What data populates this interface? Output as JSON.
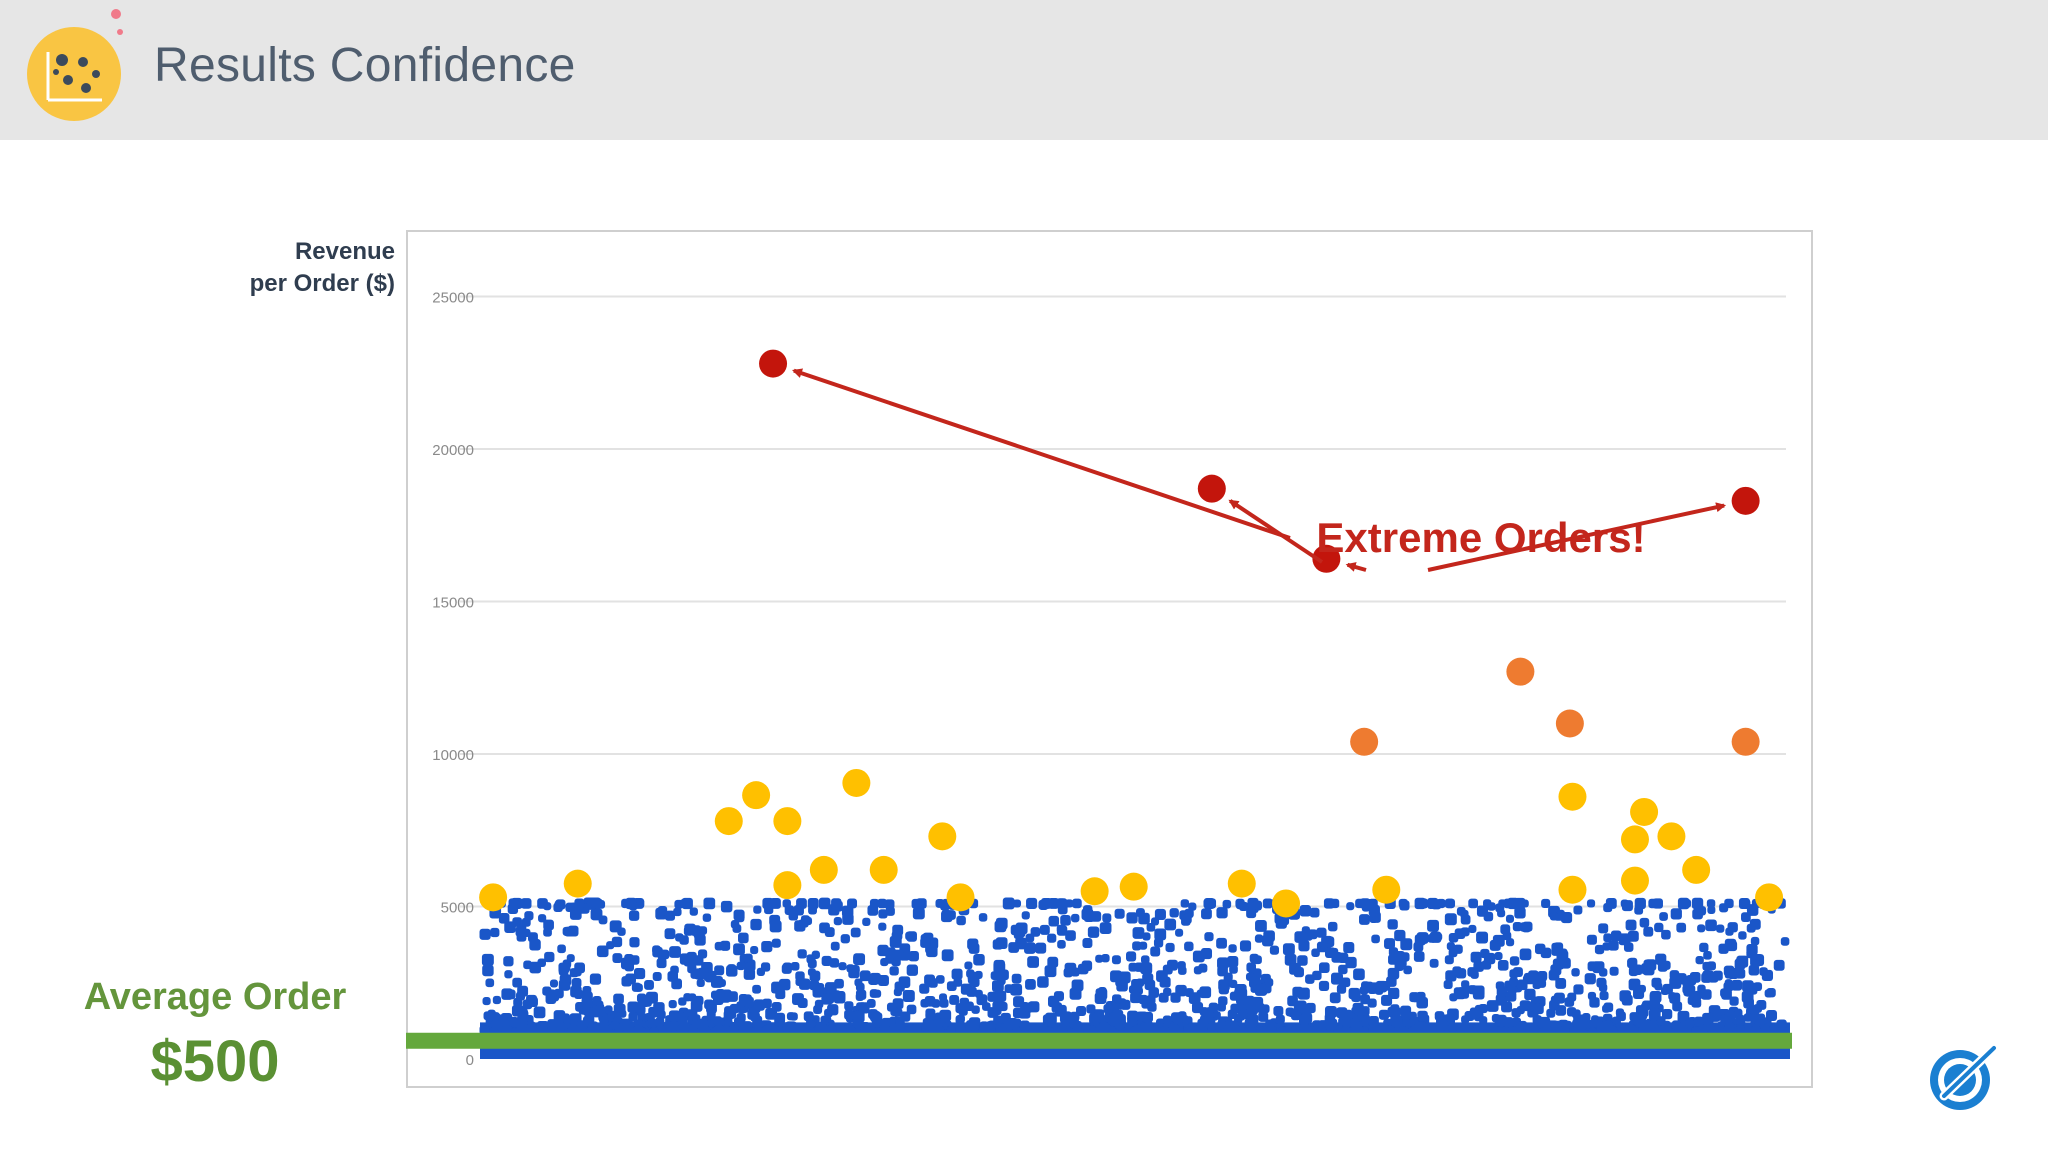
{
  "header": {
    "title": "Results Confidence",
    "logo_icon": "scatter-chart-icon"
  },
  "corner_logo_icon": "optimizely-logo-icon",
  "y_axis_title_lines": [
    "Revenue",
    "per Order ($)"
  ],
  "annotation": {
    "text": "Extreme Orders!",
    "color": "#c3261c"
  },
  "average_line": {
    "label": "Average Order",
    "value_text": "$500",
    "value": 500,
    "color": "#64a83c"
  },
  "colors": {
    "normal": "#1a56c8",
    "high": "#ffc000",
    "very_high": "#ee7b30",
    "extreme": "#c3150c",
    "header_bg": "#e6e6e6",
    "title_text": "#4f5d6e"
  },
  "chart_data": {
    "type": "scatter",
    "title": "",
    "xlabel": "",
    "ylabel": "Revenue per Order ($)",
    "ylim": [
      0,
      26000
    ],
    "y_ticks": [
      0,
      5000,
      10000,
      15000,
      20000,
      25000
    ],
    "y_tick_labels": [
      "0",
      "5000",
      "10000",
      "15000",
      "20000",
      "25000"
    ],
    "grid": true,
    "x_range": [
      0,
      1000
    ],
    "series": [
      {
        "name": "Extreme Orders!",
        "role": "extreme",
        "points": [
          {
            "x": 222,
            "y": 22800
          },
          {
            "x": 559,
            "y": 18700
          },
          {
            "x": 647,
            "y": 16400
          },
          {
            "x": 969,
            "y": 18300
          }
        ]
      },
      {
        "role": "very_high",
        "points": [
          {
            "x": 676,
            "y": 10400
          },
          {
            "x": 796,
            "y": 12700
          },
          {
            "x": 834,
            "y": 11000
          },
          {
            "x": 969,
            "y": 10400
          }
        ]
      },
      {
        "role": "high",
        "points": [
          {
            "x": 7,
            "y": 5300
          },
          {
            "x": 72,
            "y": 5750
          },
          {
            "x": 188,
            "y": 7800
          },
          {
            "x": 209,
            "y": 8650
          },
          {
            "x": 233,
            "y": 7800
          },
          {
            "x": 233,
            "y": 5700
          },
          {
            "x": 261,
            "y": 6200
          },
          {
            "x": 286,
            "y": 9050
          },
          {
            "x": 307,
            "y": 6200
          },
          {
            "x": 352,
            "y": 7300
          },
          {
            "x": 366,
            "y": 5300
          },
          {
            "x": 469,
            "y": 5500
          },
          {
            "x": 499,
            "y": 5650
          },
          {
            "x": 582,
            "y": 5750
          },
          {
            "x": 616,
            "y": 5100
          },
          {
            "x": 693,
            "y": 5550
          },
          {
            "x": 836,
            "y": 8600
          },
          {
            "x": 836,
            "y": 5550
          },
          {
            "x": 884,
            "y": 7200
          },
          {
            "x": 884,
            "y": 5850
          },
          {
            "x": 891,
            "y": 8100
          },
          {
            "x": 912,
            "y": 7300
          },
          {
            "x": 931,
            "y": 6200
          },
          {
            "x": 987,
            "y": 5300
          }
        ]
      },
      {
        "role": "normal",
        "description_count": 1800,
        "y_range": [
          0,
          5000
        ],
        "note": "dense band of orders"
      }
    ]
  }
}
